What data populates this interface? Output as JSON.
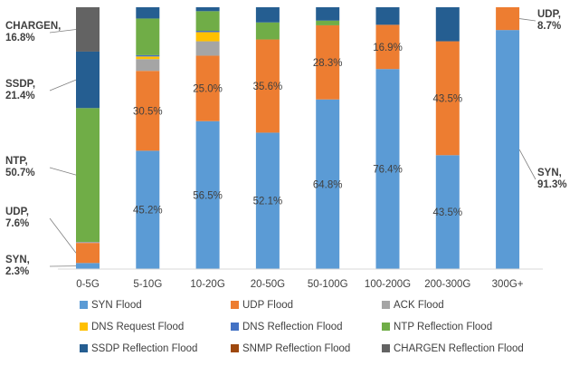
{
  "chart_data": {
    "type": "bar",
    "stacked": true,
    "normalized": true,
    "categories": [
      "0-5G",
      "5-10G",
      "10-20G",
      "20-50G",
      "50-100G",
      "100-200G",
      "200-300G",
      "300G+"
    ],
    "series": [
      {
        "name": "SYN Flood",
        "color": "#5b9bd5",
        "values": [
          2.3,
          45.2,
          56.5,
          52.1,
          64.8,
          76.4,
          43.5,
          91.3
        ]
      },
      {
        "name": "UDP Flood",
        "color": "#ed7d31",
        "values": [
          7.6,
          30.5,
          25.0,
          35.6,
          28.3,
          16.9,
          43.5,
          8.7
        ]
      },
      {
        "name": "ACK Flood",
        "color": "#a5a5a5",
        "values": [
          0.4,
          4.5,
          5.5,
          0.0,
          0.0,
          0.0,
          0.0,
          0.0
        ]
      },
      {
        "name": "DNS Request Flood",
        "color": "#ffc000",
        "values": [
          0.0,
          1.0,
          3.5,
          0.0,
          0.0,
          0.0,
          0.0,
          0.0
        ]
      },
      {
        "name": "DNS Reflection Flood",
        "color": "#4472c4",
        "values": [
          0.0,
          0.5,
          0.5,
          0.0,
          0.0,
          0.0,
          0.0,
          0.0
        ]
      },
      {
        "name": "NTP Reflection Flood",
        "color": "#70ad47",
        "values": [
          50.7,
          14.0,
          7.5,
          6.5,
          1.8,
          0.0,
          0.0,
          0.0
        ]
      },
      {
        "name": "SSDP Reflection Flood",
        "color": "#255e91",
        "values": [
          21.4,
          4.3,
          1.5,
          5.8,
          5.1,
          6.7,
          13.0,
          0.0
        ]
      },
      {
        "name": "SNMP Reflection Flood",
        "color": "#9e480e",
        "values": [
          0.0,
          0.0,
          0.0,
          0.0,
          0.0,
          0.0,
          0.0,
          0.0
        ]
      },
      {
        "name": "CHARGEN Reflection Flood",
        "color": "#636363",
        "values": [
          16.8,
          0.0,
          0.0,
          0.0,
          0.0,
          0.0,
          0.0,
          0.0
        ]
      }
    ],
    "data_labels": [
      {
        "category": "5-10G",
        "series": "SYN Flood",
        "text": "45.2%"
      },
      {
        "category": "5-10G",
        "series": "UDP Flood",
        "text": "30.5%"
      },
      {
        "category": "10-20G",
        "series": "SYN Flood",
        "text": "56.5%"
      },
      {
        "category": "10-20G",
        "series": "UDP Flood",
        "text": "25.0%"
      },
      {
        "category": "20-50G",
        "series": "SYN Flood",
        "text": "52.1%"
      },
      {
        "category": "20-50G",
        "series": "UDP Flood",
        "text": "35.6%"
      },
      {
        "category": "50-100G",
        "series": "SYN Flood",
        "text": "64.8%"
      },
      {
        "category": "50-100G",
        "series": "UDP Flood",
        "text": "28.3%"
      },
      {
        "category": "100-200G",
        "series": "SYN Flood",
        "text": "76.4%"
      },
      {
        "category": "100-200G",
        "series": "UDP Flood",
        "text": "16.9%"
      },
      {
        "category": "200-300G",
        "series": "SYN Flood",
        "text": "43.5%"
      },
      {
        "category": "200-300G",
        "series": "UDP Flood",
        "text": "43.5%"
      }
    ],
    "side_annotations": [
      {
        "category": "0-5G",
        "series": "CHARGEN Reflection Flood",
        "lines": [
          "CHARGEN,",
          "16.8%"
        ]
      },
      {
        "category": "0-5G",
        "series": "SSDP Reflection Flood",
        "lines": [
          "SSDP,",
          "21.4%"
        ]
      },
      {
        "category": "0-5G",
        "series": "NTP Reflection Flood",
        "lines": [
          "NTP,",
          "50.7%"
        ]
      },
      {
        "category": "0-5G",
        "series": "UDP Flood",
        "lines": [
          "UDP,",
          "7.6%"
        ]
      },
      {
        "category": "0-5G",
        "series": "SYN Flood",
        "lines": [
          "SYN,",
          "2.3%"
        ]
      },
      {
        "category": "300G+",
        "series": "UDP Flood",
        "lines": [
          "UDP,",
          "8.7%"
        ]
      },
      {
        "category": "300G+",
        "series": "SYN Flood",
        "lines": [
          "SYN,",
          "91.3%"
        ]
      }
    ],
    "ylim": [
      0,
      100
    ],
    "grid": false,
    "legend_position": "bottom",
    "title": "",
    "xlabel": "",
    "ylabel": ""
  }
}
